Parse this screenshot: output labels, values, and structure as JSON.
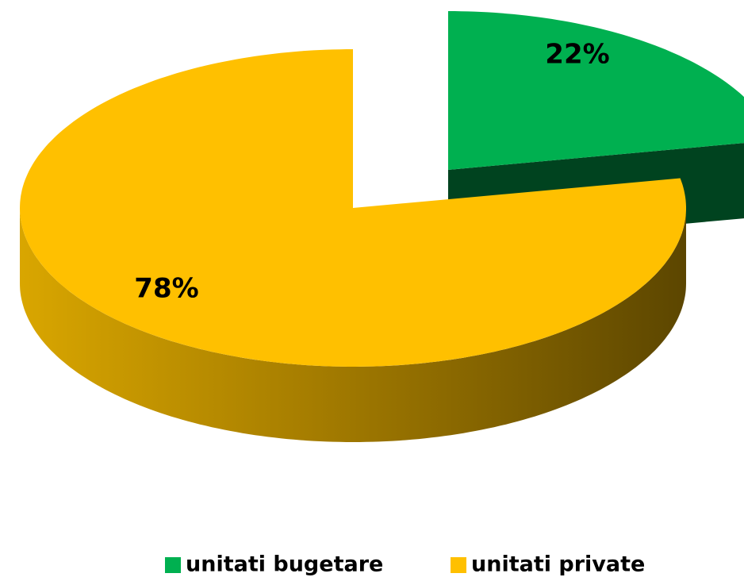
{
  "chart_data": {
    "type": "pie",
    "categories": [
      "unitati bugetare",
      "unitati private"
    ],
    "values": [
      22,
      78
    ],
    "value_labels": [
      "22%",
      "78%"
    ],
    "colors": [
      "#00b050",
      "#ffc000"
    ],
    "legend": "bottom"
  }
}
